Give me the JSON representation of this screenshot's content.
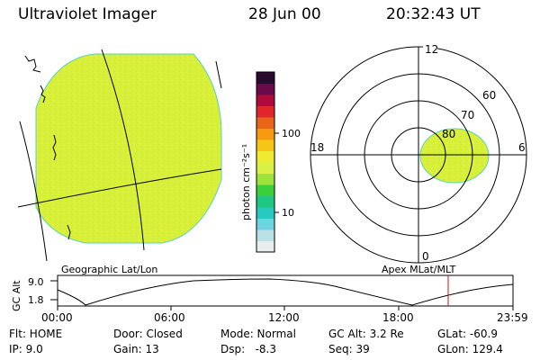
{
  "header": {
    "instrument": "Ultraviolet Imager",
    "date": "28 Jun 00",
    "time": "20:32:43 UT"
  },
  "colorbar": {
    "unit_label": "photon cm⁻²s⁻¹",
    "tick_100": "100",
    "tick_10": "10",
    "colors": [
      "#e8eef0",
      "#b8e0e6",
      "#6fd4e0",
      "#27c9c0",
      "#1ec880",
      "#3ccf3c",
      "#9ee23c",
      "#d9f046",
      "#f0ea30",
      "#f7c418",
      "#f79a12",
      "#e8661a",
      "#e0262a",
      "#b00a3a",
      "#6a0a4a",
      "#2a0a2e"
    ]
  },
  "geo_panel": {
    "label": "Geographic Lat/Lon",
    "fill_color": "#d8f03a"
  },
  "polar_panel": {
    "label": "Apex MLat/MLT",
    "mlt_12": "12",
    "mlt_18": "18",
    "mlt_6": "6",
    "mlt_0": "0",
    "lat_60": "60",
    "lat_70": "70",
    "lat_80": "80"
  },
  "timeline": {
    "axis_label": "GC Alt",
    "y_high": "9.0",
    "y_low": "1.8",
    "x_ticks": [
      "00:00",
      "06:00",
      "12:00",
      "18:00",
      "23:59"
    ],
    "current_time_color": "#d01010"
  },
  "status": {
    "flt": "Flt: HOME",
    "ip": "IP:  9.0",
    "door": "Door: Closed",
    "gain": "Gain: 13",
    "mode": "Mode: Normal",
    "dsp": "Dsp:   -8.3",
    "gc_alt": "GC Alt: 3.2 Re",
    "seq": "Seq: 39",
    "glat": "GLat: -60.9",
    "glon": "GLon: 129.4"
  }
}
